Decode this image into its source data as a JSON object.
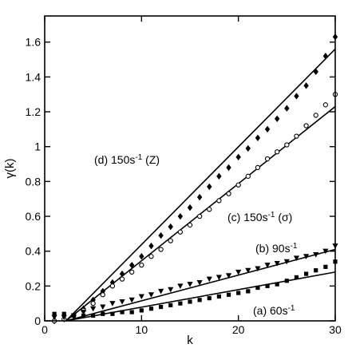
{
  "chart_data": {
    "type": "scatter",
    "xlabel": "k",
    "ylabel": "γ(k)",
    "xlim": [
      0,
      30
    ],
    "ylim": [
      0,
      1.75
    ],
    "grid": false,
    "xticks": [
      0,
      10,
      20,
      30
    ],
    "yticks": [
      0,
      0.2,
      0.4,
      0.6,
      0.8,
      1,
      1.2,
      1.4,
      1.6
    ],
    "ytick_labels": [
      "0",
      "0.2",
      "0.4",
      "0.6",
      "0.8",
      "1",
      "1.2",
      "1.4",
      "1.6"
    ],
    "xtick_labels": [
      "0",
      "10",
      "20",
      "30"
    ],
    "annotations": [
      {
        "id": "d",
        "parts": [
          [
            "(d) 150s",
            ""
          ],
          [
            "-1",
            "sup"
          ],
          [
            " (Z)",
            ""
          ]
        ]
      },
      {
        "id": "c",
        "parts": [
          [
            "(c) 150s",
            ""
          ],
          [
            "-1",
            "sup"
          ],
          [
            " (σ)",
            ""
          ]
        ]
      },
      {
        "id": "b",
        "parts": [
          [
            "(b) 90s",
            ""
          ],
          [
            "-1",
            "sup"
          ]
        ]
      },
      {
        "id": "a",
        "parts": [
          [
            "(a) 60s",
            ""
          ],
          [
            "-1",
            "sup"
          ]
        ]
      }
    ],
    "series": [
      {
        "marker": "diamond",
        "points": [
          [
            1,
            0
          ],
          [
            2,
            0.01
          ],
          [
            3,
            0.03
          ],
          [
            4,
            0.07
          ],
          [
            5,
            0.12
          ],
          [
            6,
            0.17
          ],
          [
            7,
            0.22
          ],
          [
            8,
            0.27
          ],
          [
            9,
            0.32
          ],
          [
            10,
            0.37
          ],
          [
            11,
            0.43
          ],
          [
            12,
            0.49
          ],
          [
            13,
            0.54
          ],
          [
            14,
            0.6
          ],
          [
            15,
            0.65
          ],
          [
            16,
            0.71
          ],
          [
            17,
            0.77
          ],
          [
            18,
            0.83
          ],
          [
            19,
            0.88
          ],
          [
            20,
            0.94
          ],
          [
            21,
            0.99
          ],
          [
            22,
            1.05
          ],
          [
            23,
            1.1
          ],
          [
            24,
            1.16
          ],
          [
            25,
            1.22
          ],
          [
            26,
            1.29
          ],
          [
            27,
            1.35
          ],
          [
            28,
            1.43
          ],
          [
            29,
            1.52
          ],
          [
            30,
            1.63
          ]
        ],
        "fit": [
          [
            2.2,
            0
          ],
          [
            30,
            1.56
          ]
        ]
      },
      {
        "marker": "circle",
        "points": [
          [
            1,
            0
          ],
          [
            2,
            0.01
          ],
          [
            3,
            0.03
          ],
          [
            4,
            0.06
          ],
          [
            5,
            0.1
          ],
          [
            6,
            0.15
          ],
          [
            7,
            0.2
          ],
          [
            8,
            0.24
          ],
          [
            9,
            0.28
          ],
          [
            10,
            0.32
          ],
          [
            11,
            0.37
          ],
          [
            12,
            0.41
          ],
          [
            13,
            0.46
          ],
          [
            14,
            0.51
          ],
          [
            15,
            0.55
          ],
          [
            16,
            0.6
          ],
          [
            17,
            0.64
          ],
          [
            18,
            0.69
          ],
          [
            19,
            0.73
          ],
          [
            20,
            0.78
          ],
          [
            21,
            0.83
          ],
          [
            22,
            0.88
          ],
          [
            23,
            0.93
          ],
          [
            24,
            0.97
          ],
          [
            25,
            1.01
          ],
          [
            26,
            1.06
          ],
          [
            27,
            1.12
          ],
          [
            28,
            1.18
          ],
          [
            29,
            1.24
          ],
          [
            30,
            1.3
          ]
        ],
        "fit": [
          [
            2.2,
            0
          ],
          [
            30,
            1.23
          ]
        ]
      },
      {
        "marker": "triangle-down",
        "points": [
          [
            1,
            0.02
          ],
          [
            2,
            0.02
          ],
          [
            3,
            0.03
          ],
          [
            4,
            0.05
          ],
          [
            5,
            0.07
          ],
          [
            6,
            0.08
          ],
          [
            7,
            0.1
          ],
          [
            8,
            0.11
          ],
          [
            9,
            0.12
          ],
          [
            10,
            0.14
          ],
          [
            11,
            0.15
          ],
          [
            12,
            0.17
          ],
          [
            13,
            0.18
          ],
          [
            14,
            0.2
          ],
          [
            15,
            0.21
          ],
          [
            16,
            0.22
          ],
          [
            17,
            0.24
          ],
          [
            18,
            0.25
          ],
          [
            19,
            0.26
          ],
          [
            20,
            0.28
          ],
          [
            21,
            0.29
          ],
          [
            22,
            0.3
          ],
          [
            23,
            0.32
          ],
          [
            24,
            0.33
          ],
          [
            25,
            0.34
          ],
          [
            26,
            0.36
          ],
          [
            27,
            0.37
          ],
          [
            28,
            0.38
          ],
          [
            29,
            0.4
          ],
          [
            30,
            0.43
          ]
        ],
        "fit": [
          [
            2.2,
            0
          ],
          [
            30,
            0.41
          ]
        ]
      },
      {
        "marker": "square",
        "points": [
          [
            1,
            0.04
          ],
          [
            2,
            0.04
          ],
          [
            3,
            0.03
          ],
          [
            4,
            0.03
          ],
          [
            5,
            0.03
          ],
          [
            6,
            0.04
          ],
          [
            7,
            0.04
          ],
          [
            8,
            0.05
          ],
          [
            9,
            0.05
          ],
          [
            10,
            0.06
          ],
          [
            11,
            0.07
          ],
          [
            12,
            0.08
          ],
          [
            13,
            0.09
          ],
          [
            14,
            0.1
          ],
          [
            15,
            0.11
          ],
          [
            16,
            0.12
          ],
          [
            17,
            0.13
          ],
          [
            18,
            0.14
          ],
          [
            19,
            0.15
          ],
          [
            20,
            0.16
          ],
          [
            21,
            0.17
          ],
          [
            22,
            0.19
          ],
          [
            23,
            0.2
          ],
          [
            24,
            0.21
          ],
          [
            25,
            0.23
          ],
          [
            26,
            0.25
          ],
          [
            27,
            0.27
          ],
          [
            28,
            0.29
          ],
          [
            29,
            0.31
          ],
          [
            30,
            0.34
          ]
        ],
        "fit": [
          [
            2.2,
            0
          ],
          [
            30,
            0.28
          ]
        ]
      }
    ]
  }
}
